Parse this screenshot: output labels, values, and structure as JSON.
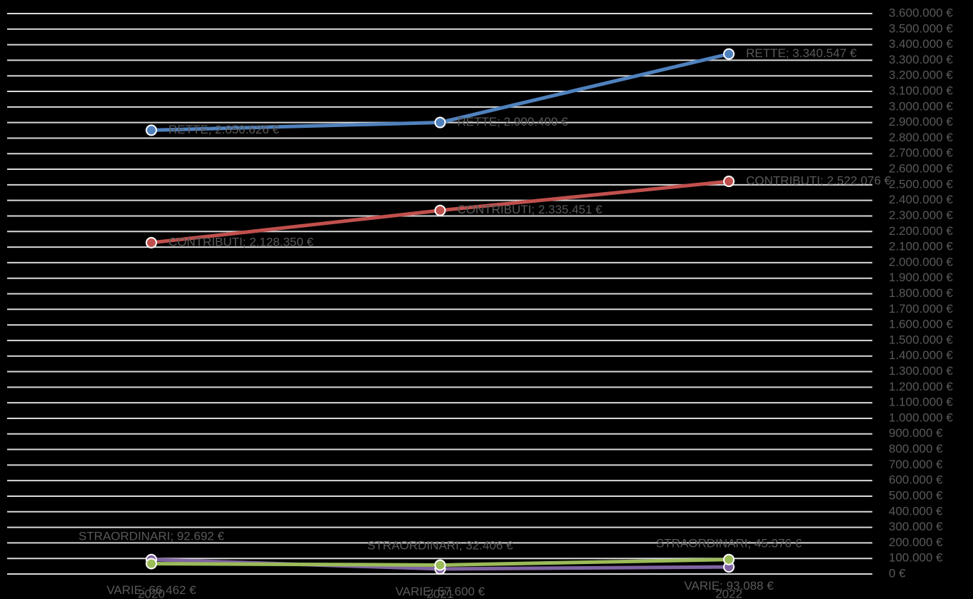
{
  "chart_data": {
    "type": "line",
    "categories": [
      "2020",
      "2021",
      "2022"
    ],
    "series": [
      {
        "name": "RETTE",
        "color": "#4f81bd",
        "values": [
          2850626,
          2900400,
          3340547
        ],
        "value_labels": [
          "RETTE; 2.850.626 €",
          "RETTE; 2.900.400 €",
          "RETTE; 3.340.547 €"
        ]
      },
      {
        "name": "CONTRIBUTI",
        "color": "#c0504d",
        "values": [
          2128350,
          2335451,
          2522076
        ],
        "value_labels": [
          "CONTRIBUTI; 2.128.350 €",
          "CONTRIBUTI; 2.335.451 €",
          "CONTRIBUTI; 2.522.076 €"
        ]
      },
      {
        "name": "STRAORDINARI",
        "color": "#8064a2",
        "values": [
          92692,
          32406,
          45376
        ],
        "value_labels": [
          "STRAORDINARI; 92.692 €",
          "STRAORDINARI; 32.406 €",
          "STRAORDINARI; 45.376 €"
        ]
      },
      {
        "name": "VARIE",
        "color": "#9bbb59",
        "values": [
          66462,
          57600,
          93088
        ],
        "value_labels": [
          "VARIE; 66.462 €",
          "VARIE; 57.600 €",
          "VARIE; 93.088 €"
        ]
      }
    ],
    "ylim": [
      0,
      3600000
    ],
    "yticks": [
      {
        "value": 0,
        "label": "0 €"
      },
      {
        "value": 100000,
        "label": "100.000 €"
      },
      {
        "value": 200000,
        "label": "200.000 €"
      },
      {
        "value": 300000,
        "label": "300.000 €"
      },
      {
        "value": 400000,
        "label": "400.000 €"
      },
      {
        "value": 500000,
        "label": "500.000 €"
      },
      {
        "value": 600000,
        "label": "600.000 €"
      },
      {
        "value": 700000,
        "label": "700.000 €"
      },
      {
        "value": 800000,
        "label": "800.000 €"
      },
      {
        "value": 900000,
        "label": "900.000 €"
      },
      {
        "value": 1000000,
        "label": "1.000.000 €"
      },
      {
        "value": 1100000,
        "label": "1.100.000 €"
      },
      {
        "value": 1200000,
        "label": "1.200.000 €"
      },
      {
        "value": 1300000,
        "label": "1.300.000 €"
      },
      {
        "value": 1400000,
        "label": "1.400.000 €"
      },
      {
        "value": 1500000,
        "label": "1.500.000 €"
      },
      {
        "value": 1600000,
        "label": "1.600.000 €"
      },
      {
        "value": 1700000,
        "label": "1.700.000 €"
      },
      {
        "value": 1800000,
        "label": "1.800.000 €"
      },
      {
        "value": 1900000,
        "label": "1.900.000 €"
      },
      {
        "value": 2000000,
        "label": "2.000.000 €"
      },
      {
        "value": 2100000,
        "label": "2.100.000 €"
      },
      {
        "value": 2200000,
        "label": "2.200.000 €"
      },
      {
        "value": 2300000,
        "label": "2.300.000 €"
      },
      {
        "value": 2400000,
        "label": "2.400.000 €"
      },
      {
        "value": 2500000,
        "label": "2.500.000 €"
      },
      {
        "value": 2600000,
        "label": "2.600.000 €"
      },
      {
        "value": 2700000,
        "label": "2.700.000 €"
      },
      {
        "value": 2800000,
        "label": "2.800.000 €"
      },
      {
        "value": 2900000,
        "label": "2.900.000 €"
      },
      {
        "value": 3000000,
        "label": "3.000.000 €"
      },
      {
        "value": 3100000,
        "label": "3.100.000 €"
      },
      {
        "value": 3200000,
        "label": "3.200.000 €"
      },
      {
        "value": 3300000,
        "label": "3.300.000 €"
      },
      {
        "value": 3400000,
        "label": "3.400.000 €"
      },
      {
        "value": 3500000,
        "label": "3.500.000 €"
      },
      {
        "value": 3600000,
        "label": "3.600.000 €"
      }
    ],
    "grid": true
  }
}
